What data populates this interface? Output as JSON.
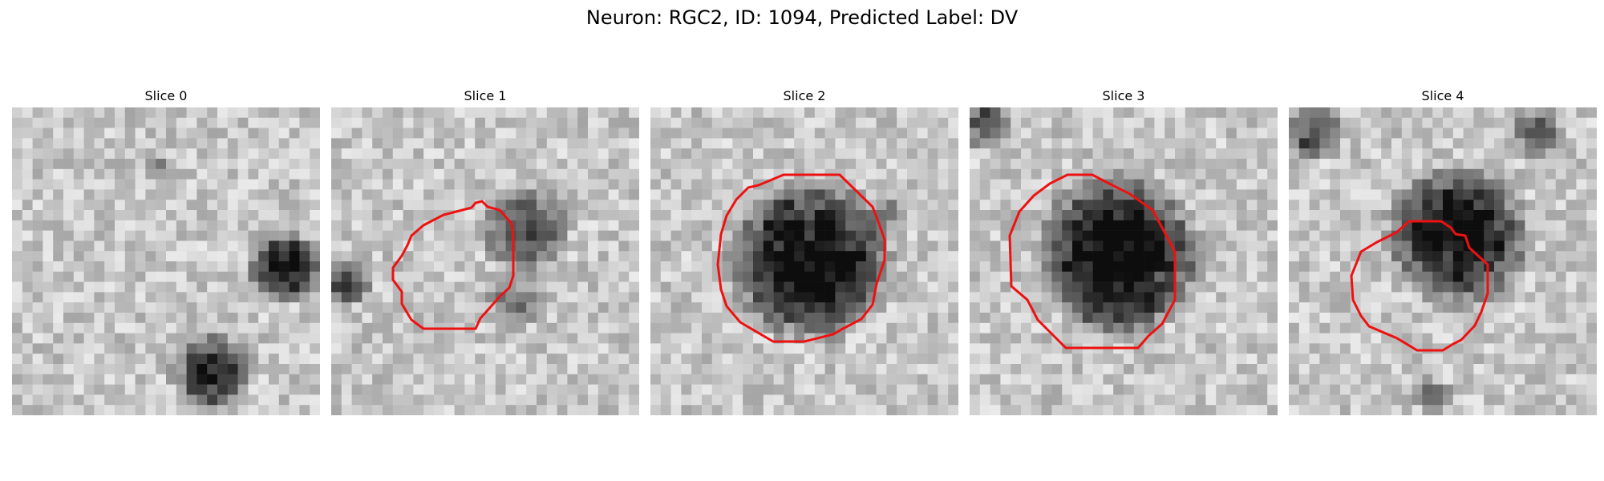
{
  "figure": {
    "title": "Neuron: RGC2, ID: 1094, Predicted Label: DV"
  },
  "panels": [
    {
      "title": "Slice 0",
      "has_outline": false
    },
    {
      "title": "Slice 1",
      "has_outline": true
    },
    {
      "title": "Slice 2",
      "has_outline": true
    },
    {
      "title": "Slice 3",
      "has_outline": true
    },
    {
      "title": "Slice 4",
      "has_outline": true
    }
  ],
  "colors": {
    "outline": "#ee1111",
    "background": "#ffffff"
  }
}
